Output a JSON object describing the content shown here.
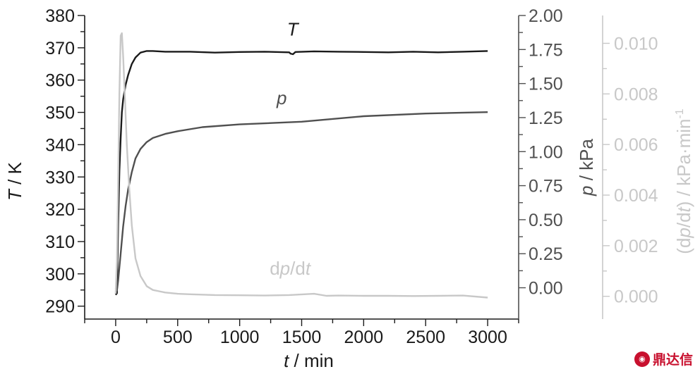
{
  "chart_data": {
    "type": "line",
    "xlabel_italic": "t",
    "xlabel_rest": " / min",
    "ylabel_left_italic": "T",
    "ylabel_left_rest": " / K",
    "ylabel_right1_italic": "p",
    "ylabel_right1_rest": " / kPa",
    "ylabel_right2_pre": "(d",
    "ylabel_right2_p": "p",
    "ylabel_right2_mid": "/d",
    "ylabel_right2_t": "t",
    "ylabel_right2_post": ") / kPa·min",
    "ylabel_right2_sup": "-1",
    "xlim": [
      -250,
      3250
    ],
    "ylim_T": [
      286,
      380
    ],
    "ylim_p": [
      -0.23,
      2.0
    ],
    "ylim_dpdt": [
      -0.0009,
      0.0111
    ],
    "x_ticks": [
      "0",
      "500",
      "1000",
      "1500",
      "2000",
      "2500",
      "3000"
    ],
    "T_ticks": [
      "290",
      "300",
      "310",
      "320",
      "330",
      "340",
      "350",
      "360",
      "370",
      "380"
    ],
    "p_ticks": [
      "0.00",
      "0.25",
      "0.50",
      "0.75",
      "1.00",
      "1.25",
      "1.50",
      "1.75",
      "2.00"
    ],
    "dpdt_ticks": [
      "0.000",
      "0.002",
      "0.004",
      "0.006",
      "0.008",
      "0.010"
    ],
    "series": [
      {
        "name": "T",
        "axis": "T",
        "color": "#1a1a1a",
        "x": [
          0,
          10,
          20,
          30,
          40,
          50,
          60,
          80,
          100,
          130,
          160,
          200,
          250,
          300,
          400,
          600,
          800,
          1000,
          1200,
          1400,
          1410,
          1430,
          1450,
          1600,
          1800,
          2000,
          2200,
          2400,
          2600,
          2800,
          3000
        ],
        "y": [
          293.5,
          294,
          315,
          332,
          342,
          350,
          354,
          358.5,
          361.5,
          365,
          367,
          368.5,
          369,
          369,
          368.8,
          368.8,
          368.5,
          368.7,
          368.8,
          368.6,
          368.2,
          368.0,
          368.7,
          368.9,
          368.8,
          368.7,
          368.6,
          368.8,
          368.6,
          368.8,
          369.0
        ]
      },
      {
        "name": "p",
        "axis": "p",
        "color": "#505050",
        "x": [
          0,
          10,
          20,
          40,
          60,
          80,
          100,
          130,
          160,
          200,
          250,
          300,
          400,
          500,
          700,
          1000,
          1500,
          2000,
          2500,
          3000
        ],
        "y": [
          0.0,
          -0.02,
          0.05,
          0.25,
          0.45,
          0.6,
          0.72,
          0.85,
          0.95,
          1.02,
          1.07,
          1.1,
          1.13,
          1.15,
          1.18,
          1.2,
          1.22,
          1.26,
          1.28,
          1.29
        ]
      },
      {
        "name": "dp/dt",
        "axis": "dpdt",
        "color": "#c8c8c8",
        "x": [
          0,
          10,
          20,
          30,
          40,
          50,
          60,
          75,
          90,
          110,
          130,
          160,
          200,
          250,
          300,
          350,
          400,
          500,
          600,
          800,
          1000,
          1200,
          1400,
          1600,
          1700,
          1800,
          2000,
          2200,
          2400,
          2600,
          2800,
          3000
        ],
        "y": [
          0.0001,
          0.0014,
          0.0045,
          0.008,
          0.0103,
          0.0104,
          0.0095,
          0.0078,
          0.006,
          0.0042,
          0.0028,
          0.0015,
          0.0008,
          0.0004,
          0.00025,
          0.0002,
          0.00015,
          0.0001,
          8e-05,
          5e-05,
          4e-05,
          3e-05,
          5e-05,
          0.0001,
          2e-05,
          3e-05,
          2e-05,
          2e-05,
          1e-05,
          2e-05,
          3e-05,
          -5e-05
        ]
      }
    ],
    "annotations": [
      {
        "text": "T",
        "italic": true,
        "x": 1450,
        "y": 376,
        "axis": "T",
        "color": "#1a1a1a"
      },
      {
        "text": "p",
        "italic": true,
        "x": 1430,
        "y": 1.4,
        "axis": "p",
        "color": "#505050"
      },
      {
        "text_pre": "d",
        "text_p": "p",
        "text_mid": "/d",
        "text_t": "t",
        "x": 1350,
        "y": 0.67,
        "axis": "T_annot",
        "color": "#c8c8c8"
      }
    ],
    "colors": {
      "T_axis": "#1a1a1a",
      "p_axis": "#505050",
      "dpdt_axis": "#c8c8c8"
    },
    "grid": false
  },
  "logo": {
    "mark": "鼎",
    "text": "鼎达信"
  }
}
